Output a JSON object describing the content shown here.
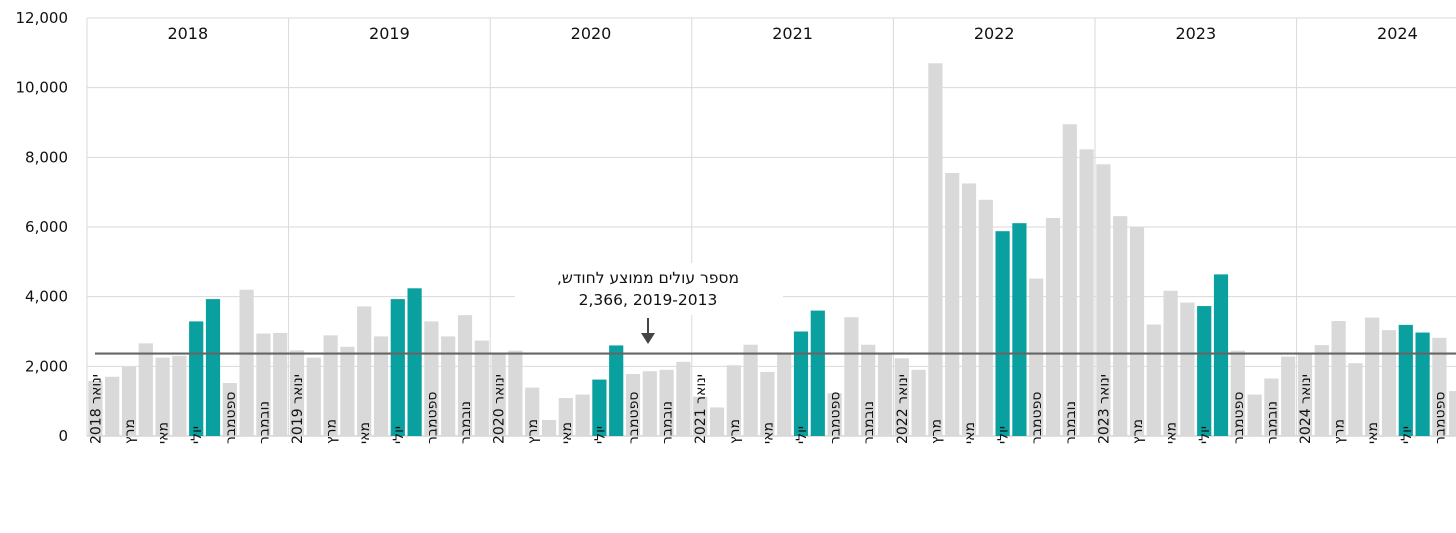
{
  "chart_data": {
    "type": "bar",
    "ylim": [
      0,
      12000
    ],
    "yticks": [
      "0",
      "2,000",
      "4,000",
      "6,000",
      "8,000",
      "10,000",
      "12,000"
    ],
    "grid": true,
    "colors": {
      "default": "#d9d9d9",
      "highlight": "#0aa0a0",
      "average_line": "#666666"
    },
    "years": [
      "2018",
      "2019",
      "2020",
      "2021",
      "2022",
      "2023",
      "2024"
    ],
    "month_labels": {
      "1": "ינואר",
      "3": "מרץ",
      "5": "מאי",
      "7": "יולי",
      "9": "ספטמבר",
      "11": "נובמבר"
    },
    "highlight_months": [
      6,
      7
    ],
    "values": [
      1580,
      1700,
      1980,
      2660,
      2250,
      2300,
      3290,
      3930,
      1520,
      4200,
      2940,
      2960,
      2460,
      2250,
      2890,
      2560,
      3720,
      2860,
      3930,
      4240,
      3290,
      2860,
      3470,
      2740,
      2350,
      2450,
      1390,
      460,
      1090,
      1190,
      1620,
      2600,
      1780,
      1860,
      1900,
      2130,
      1130,
      820,
      2030,
      2620,
      1840,
      2340,
      3000,
      3600,
      1230,
      3410,
      2620,
      2380,
      2230,
      1900,
      10700,
      7550,
      7250,
      6780,
      5880,
      6110,
      4520,
      6260,
      8950,
      8230,
      7800,
      6310,
      6000,
      3200,
      4170,
      3830,
      3730,
      4640,
      2450,
      1190,
      1650,
      2280,
      2350,
      2610,
      3300,
      2090,
      3400,
      3040,
      3190,
      2970,
      2820,
      1290
    ],
    "average": {
      "value": 2366,
      "label_line1": "מספר עולים ממוצע לחודש,",
      "label_line2": "2019-2013 ,2,366"
    },
    "last_label_partial": "ספטמבר"
  }
}
